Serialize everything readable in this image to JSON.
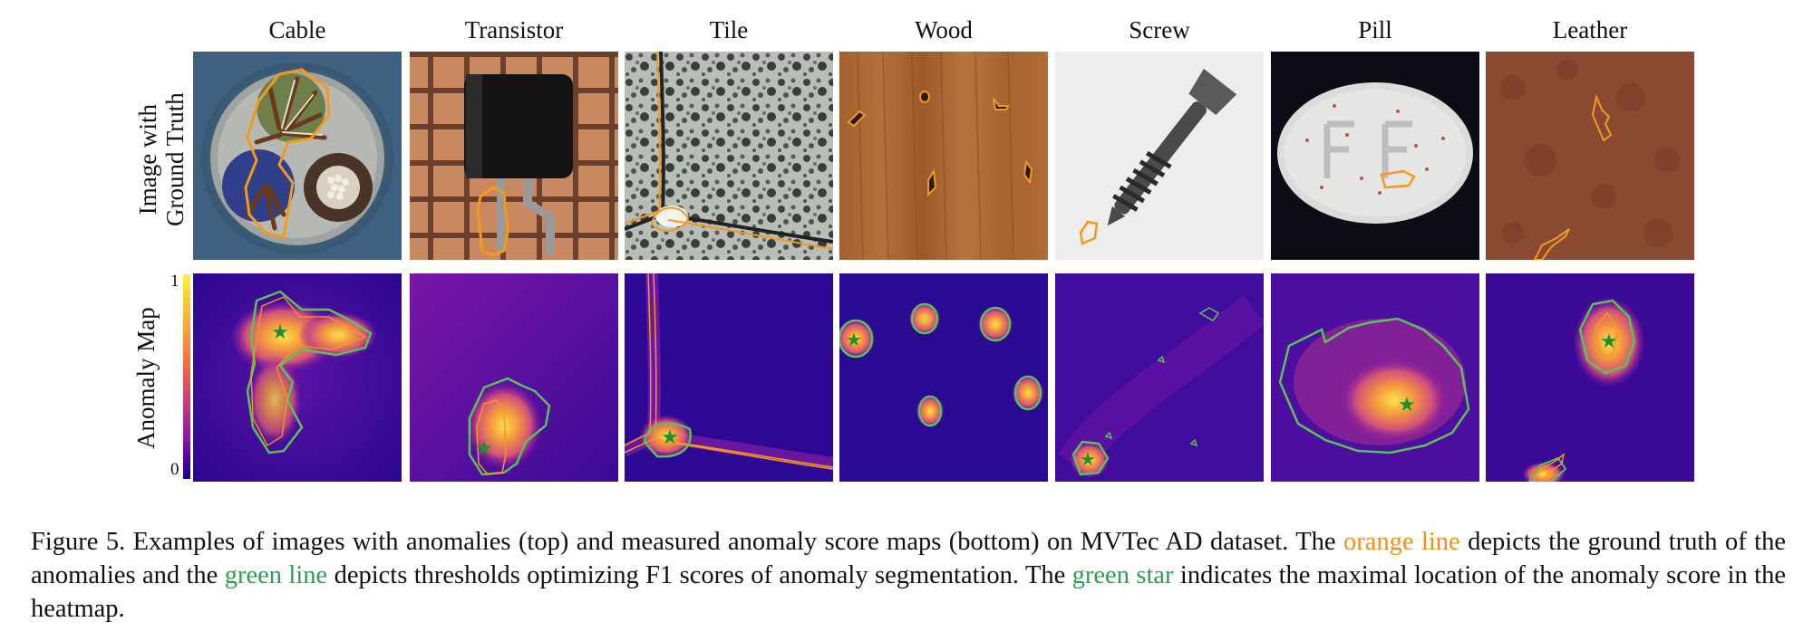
{
  "columns": [
    "Cable",
    "Transistor",
    "Tile",
    "Wood",
    "Screw",
    "Pill",
    "Leather"
  ],
  "row_labels": {
    "top_line1": "Image with",
    "top_line2": "Ground Truth",
    "bottom": "Anomaly Map"
  },
  "colorbar": {
    "max_label": "1",
    "min_label": "0"
  },
  "caption": {
    "part1": "Figure 5. Examples of images with anomalies (top) and measured anomaly score maps (bottom) on MVTec AD dataset. The ",
    "orange_line": "orange line",
    "part2": " depicts the ground truth of the anomalies and the ",
    "green_line": "green line",
    "part3": " depicts thresholds optimizing F1 scores of anomaly segmentation. The ",
    "green_star": "green star",
    "part4": " indicates the maximal location of the anomaly score in the heatmap."
  },
  "colors": {
    "ground_truth": "#f39a1e",
    "threshold": "#4cc34e",
    "star": "#1f8f2e"
  }
}
